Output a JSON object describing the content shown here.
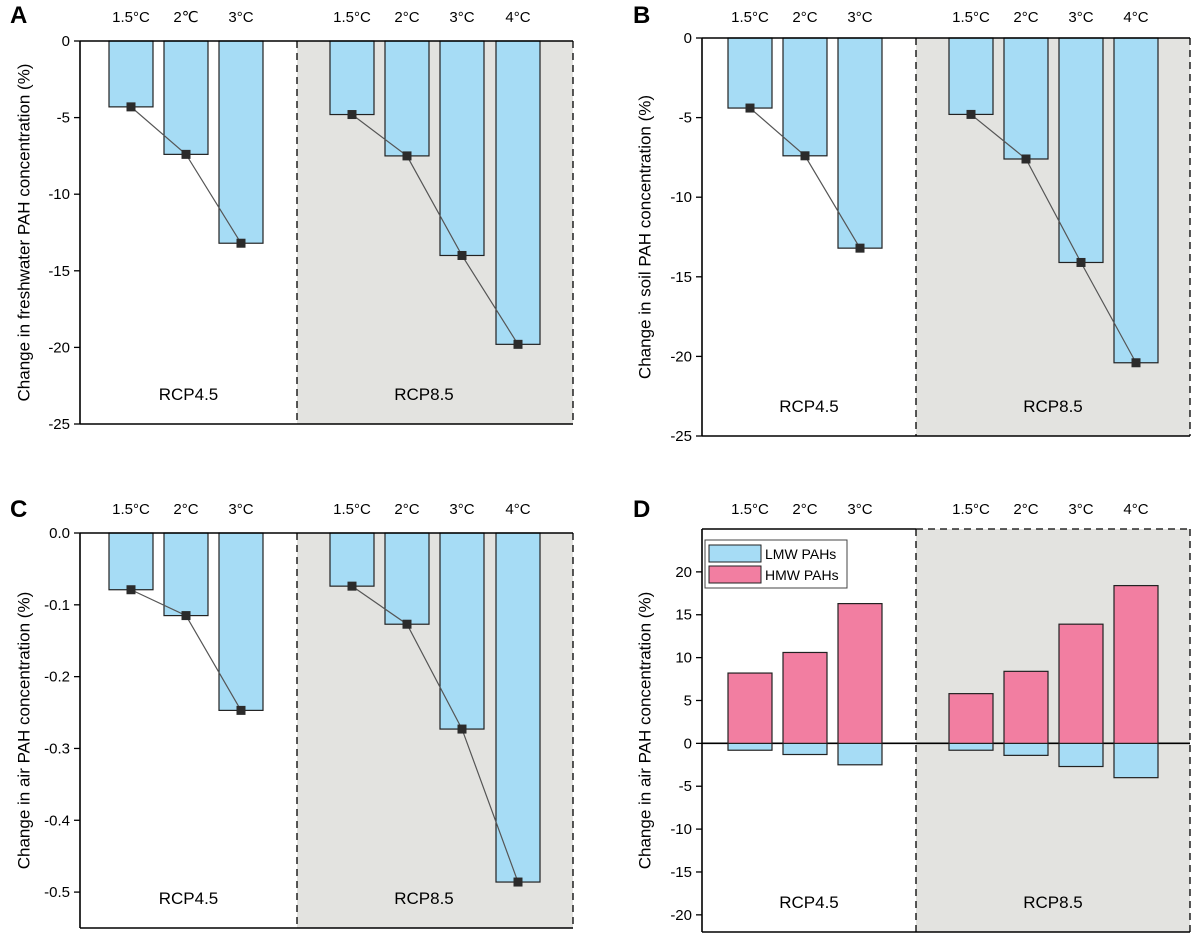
{
  "figure": {
    "colors": {
      "lmw": "#a6dcf5",
      "hmw": "#f27ea1",
      "rcp85_background": "#e3e3e0",
      "marker": "#2b2b2b",
      "line": "#555555"
    }
  },
  "chart_data": [
    {
      "type": "bar",
      "panel": "A",
      "ylabel": "Change in freshwater PAH concentration (%)",
      "ylim": [
        -25,
        0
      ],
      "yticks": [
        0,
        -5,
        -10,
        -15,
        -20,
        -25
      ],
      "ytick_labels": [
        "0",
        "-5",
        "-10",
        "-15",
        "-20",
        "-25"
      ],
      "groups": [
        {
          "name": "RCP4.5",
          "categories": [
            "1.5°C",
            "2℃",
            "3°C"
          ],
          "values": [
            -4.3,
            -7.4,
            -13.2
          ]
        },
        {
          "name": "RCP8.5",
          "categories": [
            "1.5°C",
            "2°C",
            "3°C",
            "4°C"
          ],
          "values": [
            -4.8,
            -7.5,
            -14.0,
            -19.8
          ]
        }
      ],
      "series_line": true
    },
    {
      "type": "bar",
      "panel": "B",
      "ylabel": "Change in soil PAH concentration (%)",
      "ylim": [
        -25,
        0
      ],
      "yticks": [
        0,
        -5,
        -10,
        -15,
        -20,
        -25
      ],
      "ytick_labels": [
        "0",
        "-5",
        "-10",
        "-15",
        "-20",
        "-25"
      ],
      "groups": [
        {
          "name": "RCP4.5",
          "categories": [
            "1.5°C",
            "2°C",
            "3°C"
          ],
          "values": [
            -4.4,
            -7.4,
            -13.2
          ]
        },
        {
          "name": "RCP8.5",
          "categories": [
            "1.5°C",
            "2°C",
            "3°C",
            "4°C"
          ],
          "values": [
            -4.8,
            -7.6,
            -14.1,
            -20.4
          ]
        }
      ],
      "series_line": true
    },
    {
      "type": "bar",
      "panel": "C",
      "ylabel": "Change in air PAH concentration (%)",
      "ylim": [
        -0.55,
        0
      ],
      "yticks": [
        0,
        -0.1,
        -0.2,
        -0.3,
        -0.4,
        -0.5
      ],
      "ytick_labels": [
        "0.0",
        "-0.1",
        "-0.2",
        "-0.3",
        "-0.4",
        "-0.5"
      ],
      "groups": [
        {
          "name": "RCP4.5",
          "categories": [
            "1.5°C",
            "2°C",
            "3°C"
          ],
          "values": [
            -0.079,
            -0.115,
            -0.247
          ]
        },
        {
          "name": "RCP8.5",
          "categories": [
            "1.5°C",
            "2°C",
            "3°C",
            "4°C"
          ],
          "values": [
            -0.074,
            -0.127,
            -0.273,
            -0.486
          ]
        }
      ],
      "series_line": true
    },
    {
      "type": "bar",
      "panel": "D",
      "ylabel": "Change in air PAH concentration (%)",
      "ylim": [
        -22,
        25
      ],
      "yticks": [
        20,
        15,
        10,
        5,
        0,
        -5,
        -10,
        -15,
        -20
      ],
      "ytick_labels": [
        "20",
        "15",
        "10",
        "5",
        "0",
        "-5",
        "-10",
        "-15",
        "-20"
      ],
      "legend": [
        "LMW PAHs",
        "HMW PAHs"
      ],
      "groups": [
        {
          "name": "RCP4.5",
          "categories": [
            "1.5°C",
            "2°C",
            "3°C"
          ],
          "series": [
            {
              "name": "LMW PAHs",
              "values": [
                -0.8,
                -1.3,
                -2.5
              ]
            },
            {
              "name": "HMW PAHs",
              "values": [
                8.2,
                10.6,
                16.3
              ]
            }
          ]
        },
        {
          "name": "RCP8.5",
          "categories": [
            "1.5°C",
            "2°C",
            "3°C",
            "4°C"
          ],
          "series": [
            {
              "name": "LMW PAHs",
              "values": [
                -0.8,
                -1.4,
                -2.7,
                -4.0
              ]
            },
            {
              "name": "HMW PAHs",
              "values": [
                5.8,
                8.4,
                13.9,
                18.4
              ]
            }
          ]
        }
      ],
      "zero_line": true
    }
  ]
}
